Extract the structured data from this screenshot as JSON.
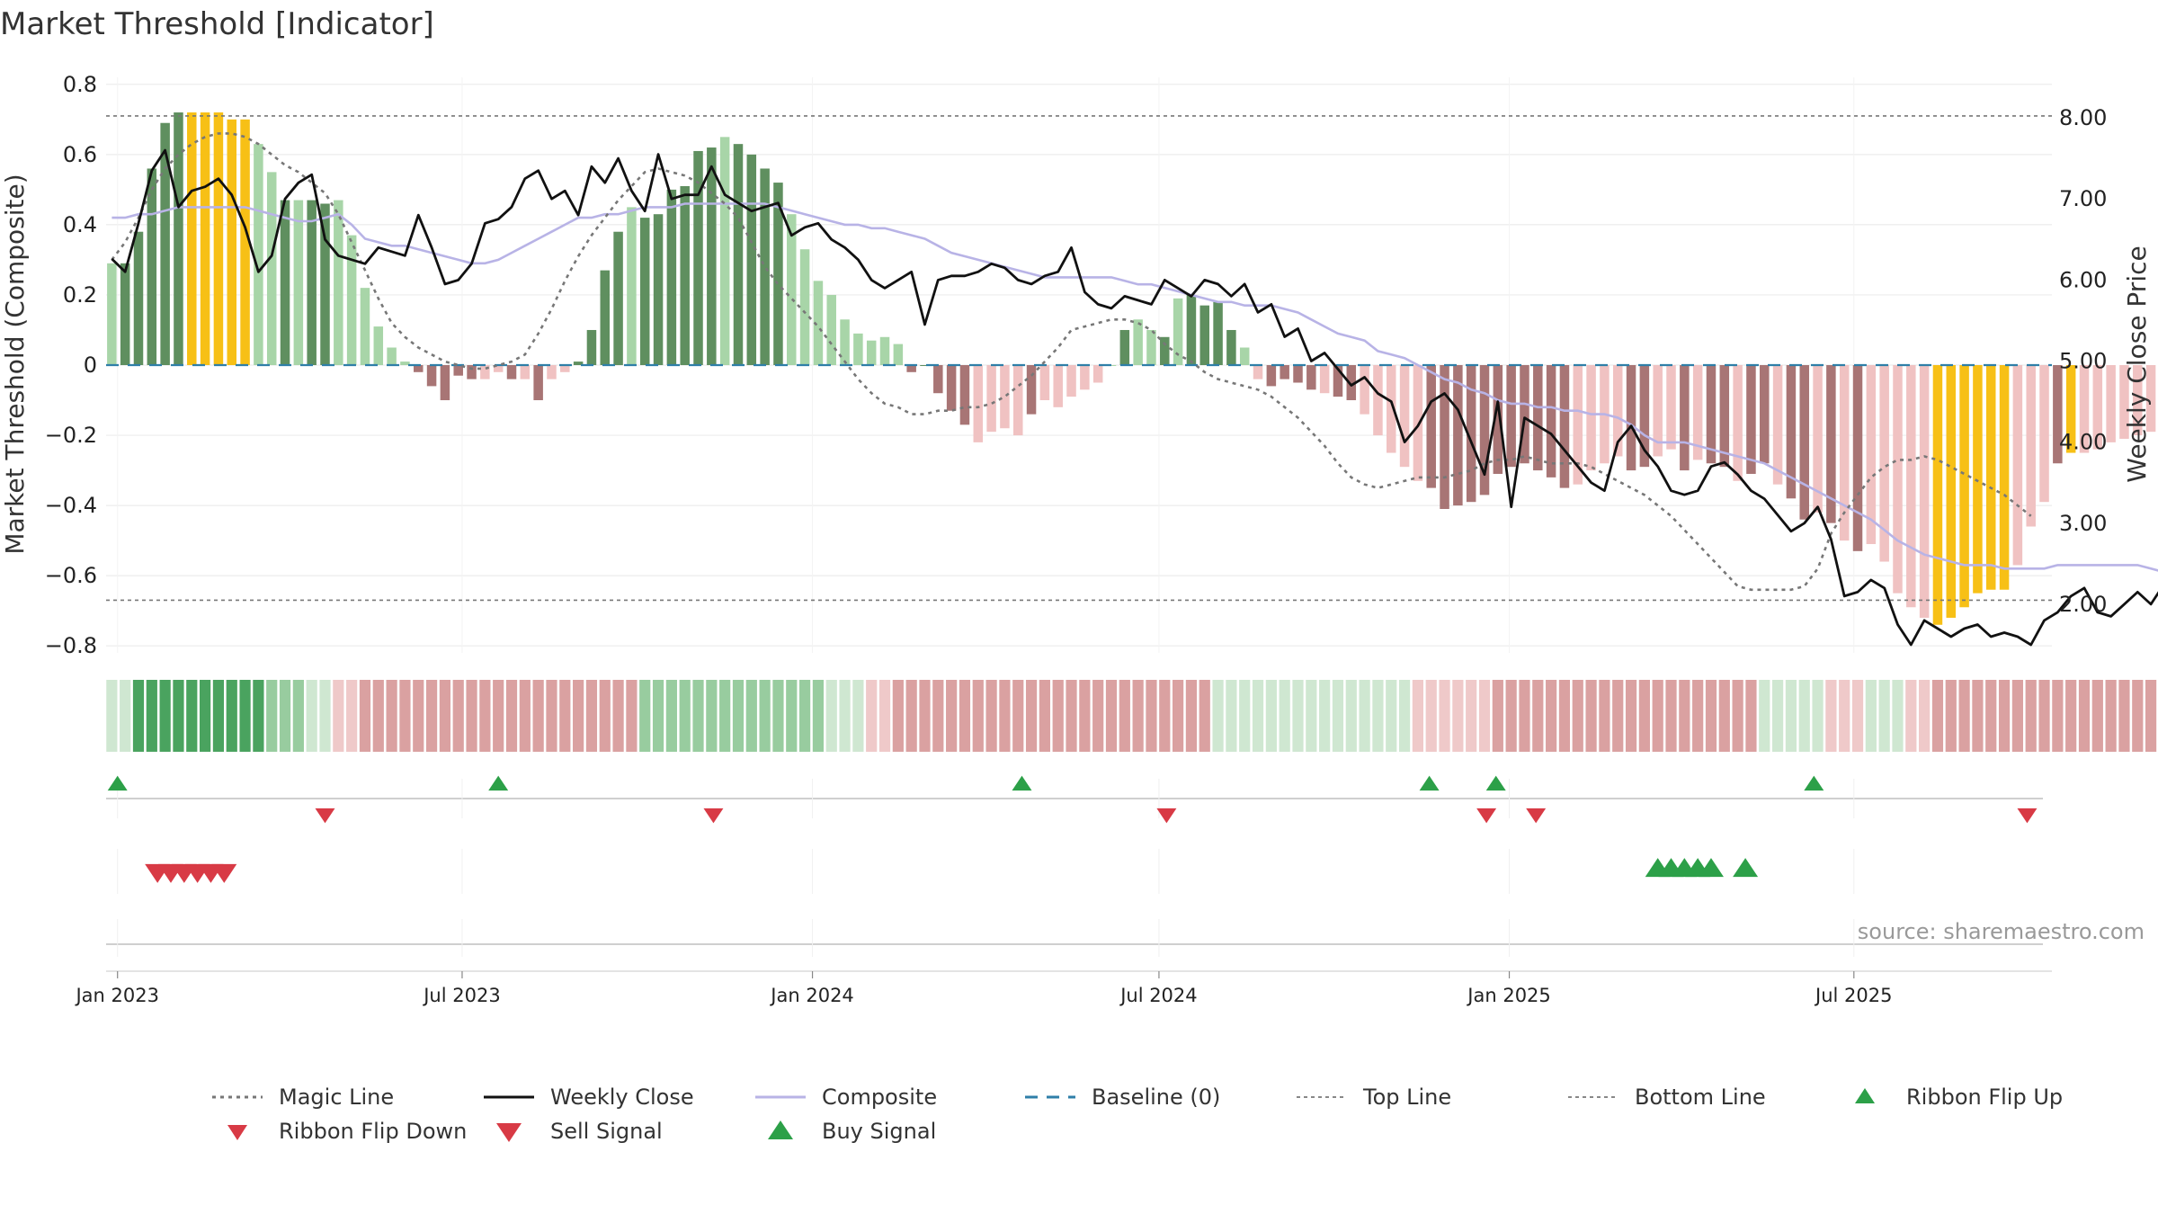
{
  "chart_data": {
    "type": "bar",
    "title": "Market Threshold [Indicator]",
    "ylabel_left": "Market Threshold (Composite)",
    "ylabel_right": "Weekly Close Price",
    "source": "source: sharemaestro.com",
    "x_start": "2022-12-26",
    "x_end": "2025-10-13",
    "x_ticks": [
      {
        "date": "2023-01-01",
        "label": "Jan 2023"
      },
      {
        "date": "2023-07-01",
        "label": "Jul 2023"
      },
      {
        "date": "2024-01-01",
        "label": "Jan 2024"
      },
      {
        "date": "2024-07-01",
        "label": "Jul 2024"
      },
      {
        "date": "2025-01-01",
        "label": "Jan 2025"
      },
      {
        "date": "2025-07-01",
        "label": "Jul 2025"
      }
    ],
    "ylim_left": [
      -0.82,
      0.82
    ],
    "yticks_left": [
      "0.8",
      "0.6",
      "0.4",
      "0.2",
      "0",
      "−0.2",
      "−0.4",
      "−0.6",
      "−0.8"
    ],
    "ylim_right": [
      1.4,
      8.5
    ],
    "yticks_right": [
      "8.00",
      "7.00",
      "6.00",
      "5.00",
      "4.00",
      "3.00",
      "2.00"
    ],
    "top_line": 0.71,
    "bottom_line": -0.67,
    "baseline": 0,
    "colors": {
      "strong_up": "#5f8f5f",
      "weak_up": "#a8d5a8",
      "strong_down": "#a87575",
      "weak_down": "#f0c2c2",
      "extreme": "#f7c016",
      "weekly_close": "#111111",
      "composite": "#b8b3e6",
      "magic_line": "#777777",
      "baseline": "#2f7fa8",
      "buy": "#2ca048",
      "sell": "#d83a45"
    },
    "weekly_bar_values": [
      0.29,
      0.29,
      0.38,
      0.56,
      0.69,
      0.72,
      0.72,
      0.72,
      0.72,
      0.7,
      0.7,
      0.63,
      0.55,
      0.47,
      0.47,
      0.47,
      0.46,
      0.47,
      0.37,
      0.22,
      0.11,
      0.05,
      0.01,
      -0.02,
      -0.06,
      -0.1,
      -0.03,
      -0.04,
      -0.04,
      -0.02,
      -0.04,
      -0.04,
      -0.1,
      -0.04,
      -0.02,
      0.01,
      0.1,
      0.27,
      0.38,
      0.45,
      0.42,
      0.43,
      0.5,
      0.51,
      0.61,
      0.62,
      0.65,
      0.63,
      0.6,
      0.56,
      0.52,
      0.43,
      0.33,
      0.24,
      0.2,
      0.13,
      0.09,
      0.07,
      0.08,
      0.06,
      -0.02,
      0.0,
      -0.08,
      -0.13,
      -0.17,
      -0.22,
      -0.19,
      -0.18,
      -0.2,
      -0.14,
      -0.1,
      -0.12,
      -0.09,
      -0.07,
      -0.05,
      0.0,
      0.1,
      0.13,
      0.1,
      0.08,
      0.19,
      0.2,
      0.17,
      0.18,
      0.1,
      0.05,
      -0.04,
      -0.06,
      -0.04,
      -0.05,
      -0.07,
      -0.08,
      -0.09,
      -0.1,
      -0.14,
      -0.2,
      -0.25,
      -0.29,
      -0.33,
      -0.35,
      -0.41,
      -0.4,
      -0.39,
      -0.37,
      -0.31,
      -0.29,
      -0.28,
      -0.3,
      -0.32,
      -0.35,
      -0.34,
      -0.3,
      -0.28,
      -0.26,
      -0.3,
      -0.29,
      -0.26,
      -0.24,
      -0.3,
      -0.27,
      -0.28,
      -0.29,
      -0.33,
      -0.31,
      -0.28,
      -0.34,
      -0.38,
      -0.44,
      -0.42,
      -0.45,
      -0.5,
      -0.53,
      -0.51,
      -0.56,
      -0.65,
      -0.69,
      -0.72,
      -0.74,
      -0.72,
      -0.69,
      -0.65,
      -0.64,
      -0.64,
      -0.57,
      -0.46,
      -0.39,
      -0.28,
      -0.25,
      -0.25,
      -0.24,
      -0.22,
      -0.21,
      -0.2,
      -0.19,
      -0.18,
      -0.2,
      -0.3,
      -0.36,
      -0.4,
      -0.41,
      -0.44,
      -0.47,
      -0.55,
      -0.6
    ],
    "weekly_bar_colors": "wsssssyyyyywwswsswwwwwwssssswwswswwsssswsssssswsssswwwwwwwwwssssswwwwswwwwwwswwswsssswwsssswsswwwwwssssssssssswwwwsswwswsswsswsswswswwwwwyyyyyywwwsywwwwwwwwwwwwssss",
    "weekly_close": [
      6.26,
      6.1,
      6.7,
      7.35,
      7.6,
      6.9,
      7.1,
      7.15,
      7.25,
      7.05,
      6.65,
      6.1,
      6.3,
      7.0,
      7.2,
      7.3,
      6.5,
      6.3,
      6.25,
      6.2,
      6.4,
      6.35,
      6.3,
      6.8,
      6.4,
      5.95,
      6.0,
      6.2,
      6.7,
      6.75,
      6.9,
      7.25,
      7.35,
      7.0,
      7.1,
      6.8,
      7.4,
      7.2,
      7.5,
      7.1,
      6.85,
      7.55,
      7.0,
      7.05,
      7.05,
      7.4,
      7.05,
      6.95,
      6.85,
      6.9,
      6.95,
      6.55,
      6.65,
      6.7,
      6.5,
      6.4,
      6.25,
      6.0,
      5.9,
      6.0,
      6.1,
      5.45,
      6.0,
      6.05,
      6.05,
      6.1,
      6.2,
      6.15,
      6.0,
      5.95,
      6.05,
      6.1,
      6.4,
      5.85,
      5.7,
      5.65,
      5.8,
      5.75,
      5.7,
      6.0,
      5.9,
      5.8,
      6.0,
      5.95,
      5.8,
      5.95,
      5.6,
      5.7,
      5.3,
      5.4,
      5.0,
      5.1,
      4.9,
      4.7,
      4.8,
      4.6,
      4.5,
      4.0,
      4.2,
      4.5,
      4.6,
      4.4,
      4.0,
      3.6,
      4.5,
      3.2,
      4.3,
      4.2,
      4.1,
      3.9,
      3.7,
      3.5,
      3.4,
      4.0,
      4.2,
      3.9,
      3.7,
      3.4,
      3.35,
      3.4,
      3.7,
      3.75,
      3.6,
      3.4,
      3.3,
      3.1,
      2.9,
      3.0,
      3.2,
      2.8,
      2.1,
      2.15,
      2.3,
      2.2,
      1.75,
      1.5,
      1.8,
      1.7,
      1.6,
      1.7,
      1.75,
      1.6,
      1.65,
      1.6,
      1.5,
      1.8,
      1.9,
      2.1,
      2.2,
      1.9,
      1.85,
      2.0,
      2.15,
      2.0,
      2.25,
      2.15,
      1.95,
      1.8,
      1.7,
      1.85,
      1.75,
      1.7,
      1.6,
      1.65,
      1.65
    ],
    "composite": [
      0.42,
      0.42,
      0.43,
      0.43,
      0.44,
      0.45,
      0.45,
      0.45,
      0.45,
      0.45,
      0.45,
      0.44,
      0.43,
      0.42,
      0.41,
      0.41,
      0.42,
      0.43,
      0.4,
      0.36,
      0.35,
      0.34,
      0.34,
      0.33,
      0.32,
      0.31,
      0.3,
      0.29,
      0.29,
      0.3,
      0.32,
      0.34,
      0.36,
      0.38,
      0.4,
      0.42,
      0.42,
      0.43,
      0.43,
      0.44,
      0.45,
      0.45,
      0.45,
      0.46,
      0.46,
      0.46,
      0.46,
      0.46,
      0.46,
      0.46,
      0.45,
      0.44,
      0.43,
      0.42,
      0.41,
      0.4,
      0.4,
      0.39,
      0.39,
      0.38,
      0.37,
      0.36,
      0.34,
      0.32,
      0.31,
      0.3,
      0.29,
      0.28,
      0.27,
      0.26,
      0.25,
      0.25,
      0.25,
      0.25,
      0.25,
      0.25,
      0.24,
      0.23,
      0.23,
      0.22,
      0.21,
      0.2,
      0.19,
      0.18,
      0.18,
      0.17,
      0.17,
      0.17,
      0.16,
      0.15,
      0.13,
      0.11,
      0.09,
      0.08,
      0.07,
      0.04,
      0.03,
      0.02,
      0.0,
      -0.02,
      -0.04,
      -0.05,
      -0.07,
      -0.08,
      -0.1,
      -0.11,
      -0.11,
      -0.12,
      -0.12,
      -0.13,
      -0.13,
      -0.14,
      -0.14,
      -0.15,
      -0.17,
      -0.2,
      -0.22,
      -0.22,
      -0.22,
      -0.23,
      -0.24,
      -0.25,
      -0.26,
      -0.27,
      -0.28,
      -0.3,
      -0.32,
      -0.34,
      -0.36,
      -0.38,
      -0.4,
      -0.42,
      -0.44,
      -0.47,
      -0.5,
      -0.52,
      -0.54,
      -0.55,
      -0.56,
      -0.57,
      -0.57,
      -0.57,
      -0.58,
      -0.58,
      -0.58,
      -0.58,
      -0.57,
      -0.57,
      -0.57,
      -0.57,
      -0.57,
      -0.57,
      -0.57,
      -0.58,
      -0.59,
      -0.6,
      -0.61,
      -0.62,
      -0.62
    ],
    "magic_line": [
      0.3,
      0.35,
      0.42,
      0.5,
      0.56,
      0.6,
      0.63,
      0.65,
      0.66,
      0.66,
      0.65,
      0.63,
      0.6,
      0.57,
      0.55,
      0.52,
      0.49,
      0.43,
      0.35,
      0.27,
      0.19,
      0.12,
      0.08,
      0.05,
      0.03,
      0.01,
      0.0,
      -0.01,
      -0.01,
      0.0,
      0.01,
      0.03,
      0.09,
      0.16,
      0.24,
      0.31,
      0.37,
      0.42,
      0.47,
      0.51,
      0.55,
      0.56,
      0.55,
      0.54,
      0.52,
      0.49,
      0.46,
      0.42,
      0.35,
      0.28,
      0.23,
      0.19,
      0.15,
      0.11,
      0.06,
      0.01,
      -0.04,
      -0.08,
      -0.11,
      -0.12,
      -0.14,
      -0.14,
      -0.13,
      -0.13,
      -0.12,
      -0.12,
      -0.11,
      -0.09,
      -0.06,
      -0.03,
      0.01,
      0.05,
      0.1,
      0.11,
      0.12,
      0.13,
      0.13,
      0.12,
      0.1,
      0.06,
      0.03,
      0.01,
      -0.02,
      -0.04,
      -0.05,
      -0.06,
      -0.07,
      -0.09,
      -0.12,
      -0.15,
      -0.19,
      -0.23,
      -0.28,
      -0.32,
      -0.34,
      -0.35,
      -0.34,
      -0.33,
      -0.32,
      -0.32,
      -0.32,
      -0.31,
      -0.3,
      -0.28,
      -0.27,
      -0.27,
      -0.26,
      -0.27,
      -0.28,
      -0.28,
      -0.28,
      -0.29,
      -0.31,
      -0.33,
      -0.35,
      -0.37,
      -0.4,
      -0.43,
      -0.47,
      -0.51,
      -0.55,
      -0.59,
      -0.63,
      -0.64,
      -0.64,
      -0.64,
      -0.64,
      -0.63,
      -0.58,
      -0.48,
      -0.42,
      -0.37,
      -0.32,
      -0.29,
      -0.27,
      -0.27,
      -0.26,
      -0.27,
      -0.29,
      -0.31,
      -0.33,
      -0.35,
      -0.37,
      -0.4,
      -0.43
    ],
    "ribbon_colors": "LLDDDDDDDDDDMMMLLRRPPPPPPPPPPPPPPPPPPPPPMMMMMMMMMMMMMMLLLRRPPPPPPPPPPPPPPPPPPPPPPPPLLLLLLLLLLLLLLLRRRRRRPPPPPPPPPPPPPPPPPPPPLLLLLRRRLLLRRPPPPPPPPPPPPPPPPPPPPPPPPPPMMMMMMMMMMMMMMMMMMLLR",
    "ribbon_flip_up_dates": [
      "2023-01-01",
      "2023-07-20",
      "2024-04-20",
      "2024-11-20",
      "2024-12-25",
      "2025-06-10"
    ],
    "ribbon_flip_down_dates": [
      "2023-04-20",
      "2023-11-10",
      "2024-07-05",
      "2024-12-20",
      "2025-01-15",
      "2025-09-30"
    ],
    "sell_signal_dates": [
      "2023-01-22",
      "2023-01-29",
      "2023-02-05",
      "2023-02-12",
      "2023-02-19",
      "2023-02-26"
    ],
    "buy_signal_dates": [
      "2025-03-20",
      "2025-03-27",
      "2025-04-03",
      "2025-04-10",
      "2025-04-17",
      "2025-05-05"
    ],
    "legend": [
      {
        "label": "Magic Line",
        "type": "dotted"
      },
      {
        "label": "Weekly Close",
        "type": "solid"
      },
      {
        "label": "Composite",
        "type": "composite"
      },
      {
        "label": "Baseline (0)",
        "type": "dashed"
      },
      {
        "label": "Top Line",
        "type": "thin-dash"
      },
      {
        "label": "Bottom Line",
        "type": "thin-dash"
      },
      {
        "label": "Ribbon Flip Up",
        "type": "tri-up-small"
      },
      {
        "label": "Ribbon Flip Down",
        "type": "tri-down-small"
      },
      {
        "label": "Sell Signal",
        "type": "tri-down-big"
      },
      {
        "label": "Buy Signal",
        "type": "tri-up-big"
      }
    ]
  }
}
